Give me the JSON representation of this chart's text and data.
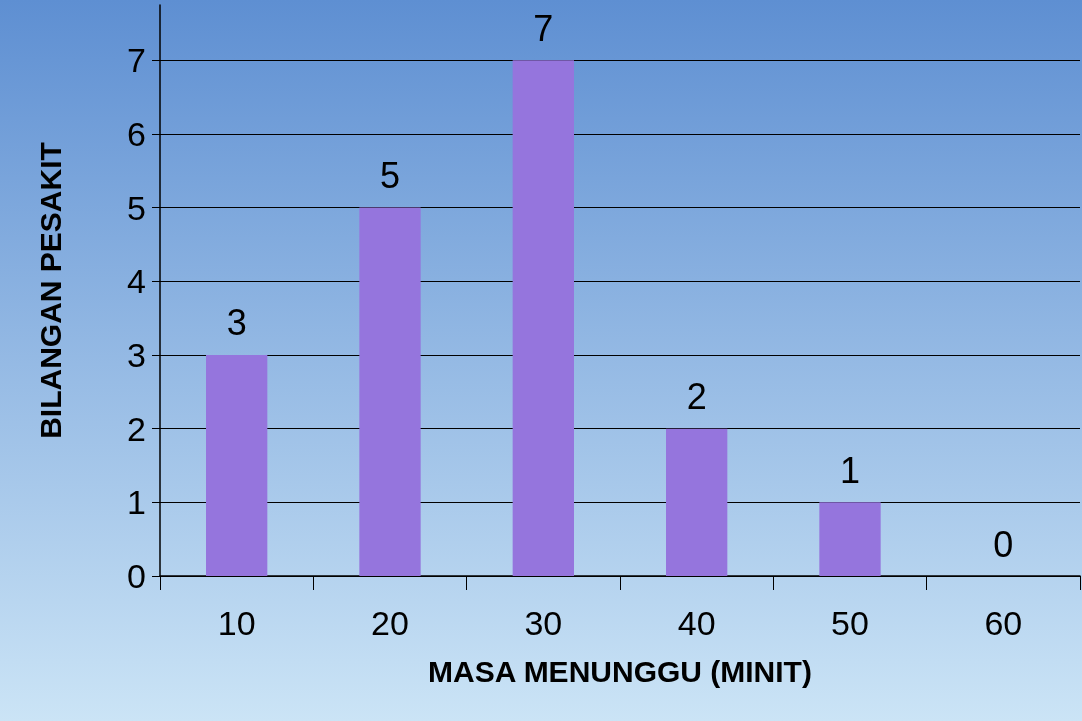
{
  "chart_data": {
    "type": "bar",
    "xlabel": "MASA MENUNGGU (MINIT)",
    "ylabel": "BILANGAN PESAKIT",
    "categories": [
      "10",
      "20",
      "30",
      "40",
      "50",
      "60"
    ],
    "values": [
      3,
      5,
      7,
      2,
      1,
      0
    ],
    "color": "#9575dd",
    "ylim": [
      0,
      7.75
    ],
    "yticks": [
      0,
      1,
      2,
      3,
      4,
      5,
      6,
      7
    ],
    "grid": "y",
    "data_labels": true
  }
}
